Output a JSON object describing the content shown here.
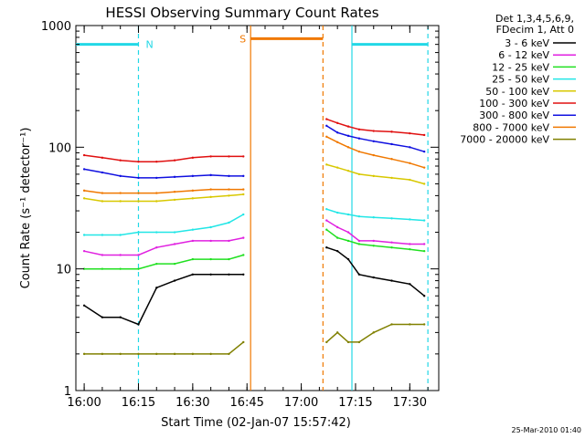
{
  "chart_data": {
    "type": "line",
    "title": "HESSI Observing Summary Count Rates",
    "xlabel": "Start Time (02-Jan-07 15:57:42)",
    "ylabel": "Count Rate (s⁻¹ detector⁻¹)",
    "y_scale": "log",
    "ylim": [
      1,
      1000
    ],
    "xlim": [
      "15:57:42",
      "17:38:00"
    ],
    "grid": false,
    "legend_position": "right",
    "legend_header": [
      "Det 1,3,4,5,6,9,",
      "FDecim 1, Att 0"
    ],
    "x_ticks": [
      "16:00",
      "16:15",
      "16:30",
      "16:45",
      "17:00",
      "17:15",
      "17:30"
    ],
    "y_ticks": [
      "1",
      "10",
      "100",
      "1000"
    ],
    "footer": "25-Mar-2010 01:40",
    "annotations": [
      {
        "text": "N",
        "color": "#22d8e6"
      },
      {
        "text": "S",
        "color": "#f07800"
      }
    ],
    "flags": [
      {
        "name": "N",
        "color": "#22d8e6",
        "level": 700,
        "spans": [
          [
            "15:57:42",
            "16:15:00"
          ],
          [
            "17:14:00",
            "17:35:00"
          ]
        ]
      },
      {
        "name": "S",
        "color": "#f07800",
        "level": 780,
        "spans": [
          [
            "16:46:00",
            "17:06:00"
          ]
        ]
      }
    ],
    "vlines": [
      {
        "time": "16:15:00",
        "color": "#22d8e6",
        "style": "dashed"
      },
      {
        "time": "16:46:00",
        "color": "#f07800",
        "style": "solid"
      },
      {
        "time": "17:06:00",
        "color": "#f07800",
        "style": "dashed"
      },
      {
        "time": "17:14:00",
        "color": "#22d8e6",
        "style": "solid"
      },
      {
        "time": "17:35:00",
        "color": "#22d8e6",
        "style": "dashed"
      }
    ],
    "series": [
      {
        "name": "3 - 6 keV",
        "color": "#000000",
        "x": [
          "16:00",
          "16:05",
          "16:10",
          "16:15",
          "16:20",
          "16:25",
          "16:30",
          "16:35",
          "16:40",
          "16:44",
          "17:07",
          "17:10",
          "17:13",
          "17:16",
          "17:20",
          "17:25",
          "17:30",
          "17:34"
        ],
        "y": [
          5,
          4,
          4,
          3.5,
          7,
          8,
          9,
          9,
          9,
          9,
          15,
          14,
          12,
          9,
          8.5,
          8,
          7.5,
          6
        ]
      },
      {
        "name": "6 - 12 keV",
        "color": "#e020e0",
        "x": [
          "16:00",
          "16:05",
          "16:10",
          "16:15",
          "16:20",
          "16:25",
          "16:30",
          "16:35",
          "16:40",
          "16:44",
          "17:07",
          "17:10",
          "17:13",
          "17:16",
          "17:20",
          "17:25",
          "17:30",
          "17:34"
        ],
        "y": [
          14,
          13,
          13,
          13,
          15,
          16,
          17,
          17,
          17,
          18,
          25,
          22,
          20,
          17,
          17,
          16.5,
          16,
          16
        ]
      },
      {
        "name": "12 - 25 keV",
        "color": "#20e020",
        "x": [
          "16:00",
          "16:05",
          "16:10",
          "16:15",
          "16:20",
          "16:25",
          "16:30",
          "16:35",
          "16:40",
          "16:44",
          "17:07",
          "17:10",
          "17:13",
          "17:16",
          "17:20",
          "17:25",
          "17:30",
          "17:34"
        ],
        "y": [
          10,
          10,
          10,
          10,
          11,
          11,
          12,
          12,
          12,
          13,
          21,
          18,
          17,
          16,
          15.5,
          15,
          14.5,
          14
        ]
      },
      {
        "name": "25 - 50 keV",
        "color": "#22e6e6",
        "x": [
          "16:00",
          "16:05",
          "16:10",
          "16:15",
          "16:20",
          "16:25",
          "16:30",
          "16:35",
          "16:40",
          "16:44",
          "17:07",
          "17:10",
          "17:13",
          "17:16",
          "17:20",
          "17:25",
          "17:30",
          "17:34"
        ],
        "y": [
          19,
          19,
          19,
          20,
          20,
          20,
          21,
          22,
          24,
          28,
          31,
          29,
          28,
          27,
          26.5,
          26,
          25.5,
          25
        ]
      },
      {
        "name": "50 - 100 keV",
        "color": "#d8c800",
        "x": [
          "16:00",
          "16:05",
          "16:10",
          "16:15",
          "16:20",
          "16:25",
          "16:30",
          "16:35",
          "16:40",
          "16:44",
          "17:07",
          "17:10",
          "17:13",
          "17:16",
          "17:20",
          "17:25",
          "17:30",
          "17:34"
        ],
        "y": [
          38,
          36,
          36,
          36,
          36,
          37,
          38,
          39,
          40,
          41,
          72,
          68,
          64,
          60,
          58,
          56,
          54,
          50
        ]
      },
      {
        "name": "100 - 300 keV",
        "color": "#e01010",
        "x": [
          "16:00",
          "16:05",
          "16:10",
          "16:15",
          "16:20",
          "16:25",
          "16:30",
          "16:35",
          "16:40",
          "16:44",
          "17:07",
          "17:10",
          "17:13",
          "17:16",
          "17:20",
          "17:25",
          "17:30",
          "17:34"
        ],
        "y": [
          86,
          82,
          78,
          76,
          76,
          78,
          82,
          84,
          84,
          84,
          170,
          158,
          148,
          140,
          136,
          134,
          130,
          126
        ]
      },
      {
        "name": "300 - 800 keV",
        "color": "#1010e0",
        "x": [
          "16:00",
          "16:05",
          "16:10",
          "16:15",
          "16:20",
          "16:25",
          "16:30",
          "16:35",
          "16:40",
          "16:44",
          "17:07",
          "17:10",
          "17:13",
          "17:16",
          "17:20",
          "17:25",
          "17:30",
          "17:34"
        ],
        "y": [
          66,
          62,
          58,
          56,
          56,
          57,
          58,
          59,
          58,
          58,
          150,
          132,
          124,
          118,
          112,
          106,
          100,
          92
        ]
      },
      {
        "name": "800 - 7000 keV",
        "color": "#f07800",
        "x": [
          "16:00",
          "16:05",
          "16:10",
          "16:15",
          "16:20",
          "16:25",
          "16:30",
          "16:35",
          "16:40",
          "16:44",
          "17:07",
          "17:10",
          "17:13",
          "17:16",
          "17:20",
          "17:25",
          "17:30",
          "17:34"
        ],
        "y": [
          44,
          42,
          42,
          42,
          42,
          43,
          44,
          45,
          45,
          45,
          122,
          110,
          100,
          92,
          86,
          80,
          74,
          68
        ]
      },
      {
        "name": "7000 - 20000 keV",
        "color": "#808000",
        "x": [
          "16:00",
          "16:05",
          "16:10",
          "16:15",
          "16:20",
          "16:25",
          "16:30",
          "16:35",
          "16:40",
          "16:44",
          "17:07",
          "17:10",
          "17:13",
          "17:16",
          "17:20",
          "17:25",
          "17:30",
          "17:34"
        ],
        "y": [
          2,
          2,
          2,
          2,
          2,
          2,
          2,
          2,
          2,
          2.5,
          2.5,
          3,
          2.5,
          2.5,
          3,
          3.5,
          3.5,
          3.5
        ]
      }
    ]
  }
}
